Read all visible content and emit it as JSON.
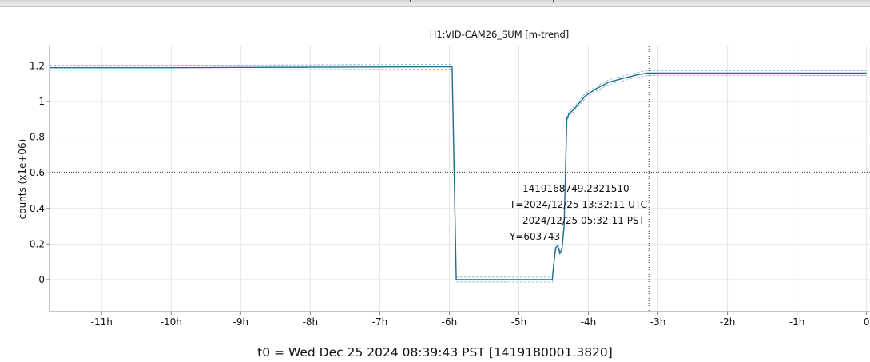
{
  "window": {
    "title_fragment_1": "r",
    "title_fragment_2": "]"
  },
  "colors": {
    "trace": "#1f6c8c",
    "trace_minmax": "#4a9fc0",
    "grid": "#e6e6e6",
    "cursor": "#333333",
    "axis": "#888888"
  },
  "t0_label": "t0 = Wed Dec 25 2024 08:39:43 PST [1419180001.3820]",
  "chart_data": {
    "type": "line",
    "title": "H1:VID-CAM26_SUM [m-trend]",
    "xlabel": "",
    "ylabel": "counts (x1e+06)",
    "x_unit": "hours relative to t0",
    "xlim": [
      -11.75,
      0.05
    ],
    "ylim": [
      -0.18,
      1.31
    ],
    "x_ticks": [
      -11,
      -10,
      -9,
      -8,
      -7,
      -6,
      -5,
      -4,
      -3,
      -2,
      -1,
      0
    ],
    "x_tick_labels": [
      "-11h",
      "-10h",
      "-9h",
      "-8h",
      "-7h",
      "-6h",
      "-5h",
      "-4h",
      "-3h",
      "-2h",
      "-1h",
      "0"
    ],
    "y_ticks": [
      0,
      0.2,
      0.4,
      0.6,
      0.8,
      1,
      1.2
    ],
    "y_tick_labels": [
      "0",
      "0.2",
      "0.4",
      "0.6",
      "0.8",
      "1",
      "1.2"
    ],
    "grid": true,
    "series": [
      {
        "values_x": [
          -11.75,
          -11.0,
          -10.0,
          -9.0,
          -8.0,
          -7.0,
          -6.2,
          -5.96,
          -5.93,
          -5.9,
          -5.85,
          -5.0,
          -4.52,
          -4.5,
          -4.47,
          -4.44,
          -4.41,
          -4.38,
          -4.35,
          -4.33,
          -4.31,
          -4.28,
          -4.2,
          -4.05,
          -3.9,
          -3.7,
          -3.5,
          -3.3,
          -3.15,
          -3.0,
          -2.0,
          -1.0,
          0.0
        ],
        "values_y": [
          1.19,
          1.19,
          1.19,
          1.192,
          1.193,
          1.194,
          1.195,
          1.195,
          0.6,
          0.0,
          0.0,
          0.0,
          0.0,
          0.08,
          0.18,
          0.19,
          0.15,
          0.17,
          0.3,
          0.6,
          0.9,
          0.93,
          0.96,
          1.03,
          1.07,
          1.11,
          1.13,
          1.15,
          1.16,
          1.16,
          1.16,
          1.16,
          1.16
        ]
      }
    ],
    "cursor": {
      "x": -3.13,
      "y": 0.603743,
      "label_gps": "1419168749.2321510",
      "label_utc": "T=2024/12/25 13:32:11 UTC",
      "label_pst": "2024/12/25 05:32:11 PST",
      "label_y": "Y=603743"
    }
  }
}
